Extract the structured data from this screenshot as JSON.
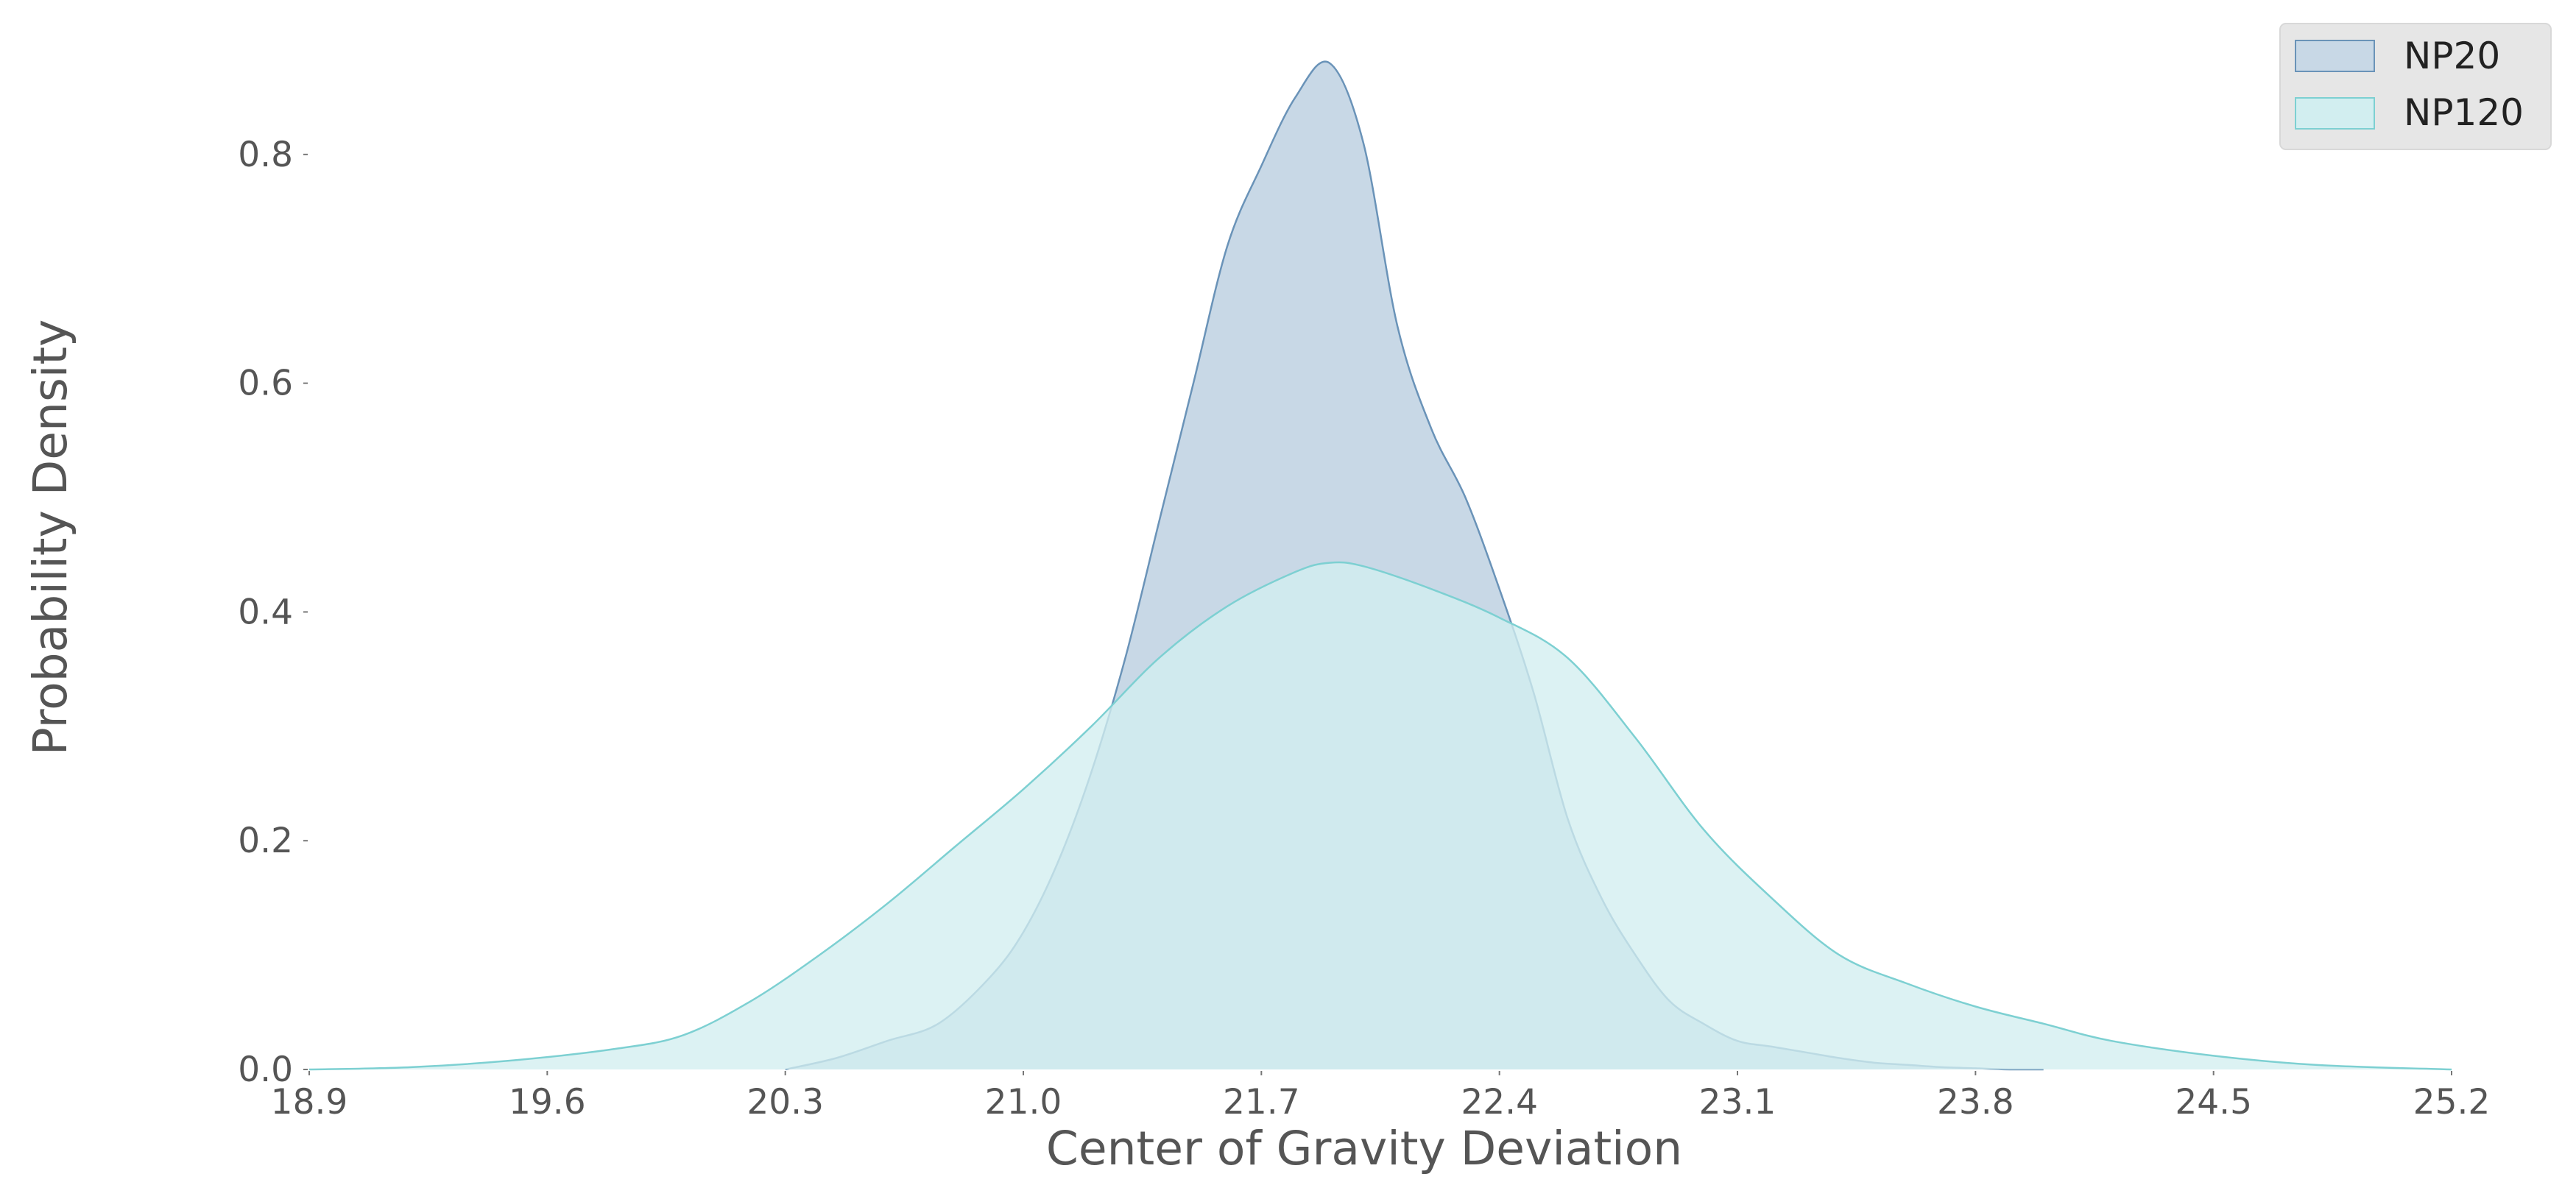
{
  "chart_data": {
    "type": "area",
    "title": "",
    "xlabel": "Center of Gravity Deviation",
    "ylabel": "Probability Density",
    "xlim": [
      18.9,
      25.2
    ],
    "ylim": [
      0.0,
      0.89
    ],
    "xticks": [
      "18.9",
      "19.6",
      "20.3",
      "21.0",
      "21.7",
      "22.4",
      "23.1",
      "23.8",
      "24.5",
      "25.2"
    ],
    "yticks": [
      "0.0",
      "0.2",
      "0.4",
      "0.6",
      "0.8"
    ],
    "grid": false,
    "legend_position": "top-right",
    "series": [
      {
        "name": "NP20",
        "fill": "#c8d8e6",
        "stroke": "#6a93b8",
        "x": [
          20.3,
          20.45,
          20.6,
          20.75,
          20.9,
          21.0,
          21.1,
          21.2,
          21.3,
          21.4,
          21.5,
          21.6,
          21.7,
          21.8,
          21.9,
          22.0,
          22.1,
          22.2,
          22.3,
          22.4,
          22.5,
          22.6,
          22.7,
          22.8,
          22.9,
          23.0,
          23.1,
          23.2,
          23.3,
          23.4,
          23.5,
          23.6,
          23.7,
          23.8,
          23.9,
          24.0
        ],
        "y": [
          0.0,
          0.01,
          0.025,
          0.04,
          0.08,
          0.12,
          0.18,
          0.26,
          0.36,
          0.48,
          0.6,
          0.72,
          0.79,
          0.85,
          0.88,
          0.81,
          0.65,
          0.56,
          0.5,
          0.42,
          0.33,
          0.22,
          0.15,
          0.1,
          0.06,
          0.04,
          0.025,
          0.02,
          0.015,
          0.01,
          0.006,
          0.004,
          0.002,
          0.001,
          0.0,
          0.0
        ]
      },
      {
        "name": "NP120",
        "fill": "#d2eef0",
        "stroke": "#7dd0d2",
        "x": [
          18.9,
          19.2,
          19.5,
          19.8,
          20.0,
          20.2,
          20.4,
          20.6,
          20.8,
          21.0,
          21.2,
          21.4,
          21.6,
          21.8,
          21.9,
          22.0,
          22.2,
          22.4,
          22.6,
          22.8,
          23.0,
          23.2,
          23.4,
          23.6,
          23.8,
          24.0,
          24.2,
          24.5,
          24.8,
          25.2
        ],
        "y": [
          0.0,
          0.002,
          0.008,
          0.018,
          0.03,
          0.06,
          0.1,
          0.145,
          0.195,
          0.245,
          0.3,
          0.36,
          0.405,
          0.435,
          0.443,
          0.44,
          0.42,
          0.395,
          0.36,
          0.29,
          0.21,
          0.15,
          0.1,
          0.075,
          0.055,
          0.04,
          0.025,
          0.012,
          0.004,
          0.0
        ]
      }
    ]
  }
}
